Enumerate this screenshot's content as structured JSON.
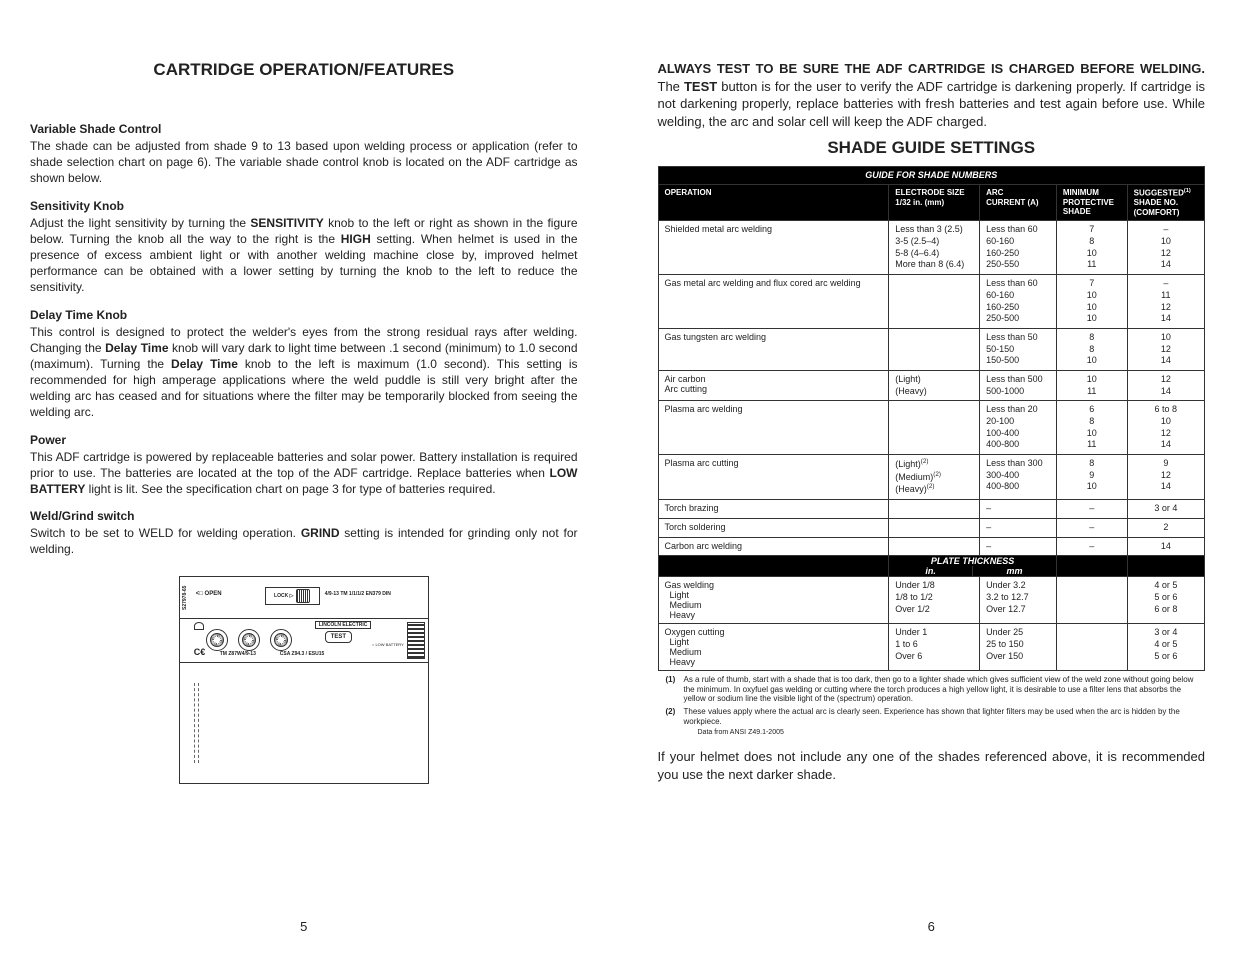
{
  "left": {
    "title": "CARTRIDGE OPERATION/FEATURES",
    "sections": [
      {
        "heading": "Variable Shade Control",
        "html": "The shade can be adjusted from shade 9 to 13 based upon welding process or application (refer to shade selection chart on page 6).  The variable shade control knob is located on the ADF cartridge as shown below."
      },
      {
        "heading": "Sensitivity Knob",
        "html": "Adjust the light sensitivity by turning the <span class='b'>SENSITIVITY</span> knob to the left or right as shown in the figure below.  Turning the knob all the way to the right is the <span class='b'>HIGH</span> setting.  When helmet is used in the presence of excess ambient light or with another welding machine close by, improved helmet performance can be obtained with a lower setting by turning the knob to the left to reduce the sensitivity."
      },
      {
        "heading": "Delay Time Knob",
        "html": "This control is designed to protect the welder's eyes from the strong residual rays after welding.  Changing the <span class='b'>Delay Time</span> knob will vary dark to light time between .1 second (minimum) to 1.0 second (maximum).  Turning the <span class='b'>Delay Time</span> knob to the left is maximum (1.0 second).  This setting is recommended for high amperage applications where the weld puddle is still very bright after the welding arc has ceased and for situations where the filter may be temporarily blocked from seeing the welding arc."
      },
      {
        "heading": "Power",
        "html": "This ADF cartridge is powered by replaceable batteries and solar power. Battery installation is required prior to use. The batteries are located at the top of the ADF cartridge. Replace batteries when <span class='b'>LOW BATTERY</span> light is lit. See the specification chart on page 3 for type of batteries required."
      },
      {
        "heading": "Weld/Grind switch",
        "html": "Switch to be set to WELD for welding operation. <span class='b'>GRIND</span> setting is intended for grinding only not for welding."
      }
    ],
    "diagram": {
      "rot": "S27978-65",
      "open_arrow": "<□ OPEN",
      "lock": "LOCK ▷",
      "tm_top": "4/9-13 TM 1/1/1/2 EN379 DIN",
      "brand": "LINCOLN ELECTRIC",
      "test": "TEST",
      "lowbat": "○\nLOW\nBATTERY",
      "ce": "C€",
      "tm1": "TM Z87W4/9-13",
      "tm2": "CSA Z94.3 / ESU15"
    },
    "page_num": "5"
  },
  "right": {
    "lead_html": "<span class='bb'>ALWAYS TEST TO BE SURE THE ADF CARTRIDGE IS CHARGED BEFORE WELDING.</span>  The <span class='bb'>TEST</span> button is for the user to verify the ADF cartridge is darkening properly.  If cartridge is not darkening properly, replace batteries with fresh batteries and test again before use.  While welding, the arc and solar cell will keep the ADF charged.",
    "shade_title": "SHADE GUIDE SETTINGS",
    "band1": "GUIDE FOR SHADE NUMBERS",
    "cols": [
      "OPERATION",
      "ELECTRODE SIZE\n1/32 in. (mm)",
      "ARC\nCURRENT (A)",
      "MINIMUM\nPROTECTIVE\nSHADE",
      "SUGGESTED<sup>(1)</sup>\nSHADE NO.\n(COMFORT)"
    ],
    "rows1": [
      {
        "op": "Shielded metal arc welding",
        "es": [
          "Less than 3 (2.5)",
          "3-5 (2.5–4)",
          "5-8 (4–6.4)",
          "More than 8 (6.4)"
        ],
        "arc": [
          "Less than 60",
          "60-160",
          "160-250",
          "250-550"
        ],
        "min": [
          "7",
          "8",
          "10",
          "11"
        ],
        "sug": [
          "–",
          "10",
          "12",
          "14"
        ]
      },
      {
        "op": "Gas metal arc welding and flux cored arc welding",
        "es": [],
        "arc": [
          "Less than 60",
          "60-160",
          "160-250",
          "250-500"
        ],
        "min": [
          "7",
          "10",
          "10",
          "10"
        ],
        "sug": [
          "–",
          "11",
          "12",
          "14"
        ]
      },
      {
        "op": "Gas tungsten arc welding",
        "es": [],
        "arc": [
          "Less than 50",
          "50-150",
          "150-500"
        ],
        "min": [
          "8",
          "8",
          "10"
        ],
        "sug": [
          "10",
          "12",
          "14"
        ]
      },
      {
        "op": "Air carbon\nArc cutting",
        "es": [
          "(Light)",
          "(Heavy)"
        ],
        "arc": [
          "Less than 500",
          "500-1000"
        ],
        "min": [
          "10",
          "11"
        ],
        "sug": [
          "12",
          "14"
        ]
      },
      {
        "op": "Plasma arc welding",
        "es": [],
        "arc": [
          "Less than 20",
          "20-100",
          "100-400",
          "400-800"
        ],
        "min": [
          "6",
          "8",
          "10",
          "11"
        ],
        "sug": [
          "6 to 8",
          "10",
          "12",
          "14"
        ]
      },
      {
        "op": "Plasma arc cutting",
        "es": [
          "(Light)<sup>(2)</sup>",
          "(Medium)<sup>(2)</sup>",
          "(Heavy)<sup>(2)</sup>"
        ],
        "arc": [
          "Less than 300",
          "300-400",
          "400-800"
        ],
        "min": [
          "8",
          "9",
          "10"
        ],
        "sug": [
          "9",
          "12",
          "14"
        ]
      },
      {
        "op": "Torch brazing",
        "es": [],
        "arc": [
          "–"
        ],
        "min": [
          "–"
        ],
        "sug": [
          "3 or 4"
        ]
      },
      {
        "op": "Torch soldering",
        "es": [],
        "arc": [
          "–"
        ],
        "min": [
          "–"
        ],
        "sug": [
          "2"
        ]
      },
      {
        "op": "Carbon arc welding",
        "es": [],
        "arc": [
          "–"
        ],
        "min": [
          "–"
        ],
        "sug": [
          "14"
        ]
      }
    ],
    "band2_a": "PLATE THICKNESS",
    "band2_in": "in.",
    "band2_mm": "mm",
    "rows2": [
      {
        "op": "Gas welding\n  Light\n  Medium\n  Heavy",
        "in": [
          "",
          "Under 1/8",
          "1/8 to 1/2",
          "Over 1/2"
        ],
        "mm": [
          "",
          "Under 3.2",
          "3.2 to 12.7",
          "Over 12.7"
        ],
        "min": [],
        "sug": [
          "",
          "4 or 5",
          "5 or 6",
          "6 or 8"
        ]
      },
      {
        "op": "Oxygen cutting\n  Light\n  Medium\n  Heavy",
        "in": [
          "",
          "Under 1",
          "1 to 6",
          "Over 6"
        ],
        "mm": [
          "",
          "Under 25",
          "25 to 150",
          "Over 150"
        ],
        "min": [],
        "sug": [
          "",
          "3 or 4",
          "4 or 5",
          "5 or 6"
        ]
      }
    ],
    "footnotes": [
      {
        "n": "(1)",
        "t": "As a rule of thumb, start with a shade that is too dark, then go to a lighter shade which gives sufficient view of the weld zone without going below the minimum. In oxyfuel gas welding or cutting where the torch produces a high yellow light, it is desirable to use a filter lens that absorbs the yellow or sodium line the visible light of the (spectrum) operation."
      },
      {
        "n": "(2)",
        "t": "These values apply where the actual arc is clearly seen. Experience has shown that lighter filters may be used when the arc is hidden by the workpiece."
      }
    ],
    "datasrc": "Data from ANSI Z49.1-2005",
    "closing": "If your helmet does not include any one of the shades referenced above, it is recommended you use the next darker shade.",
    "page_num": "6"
  }
}
